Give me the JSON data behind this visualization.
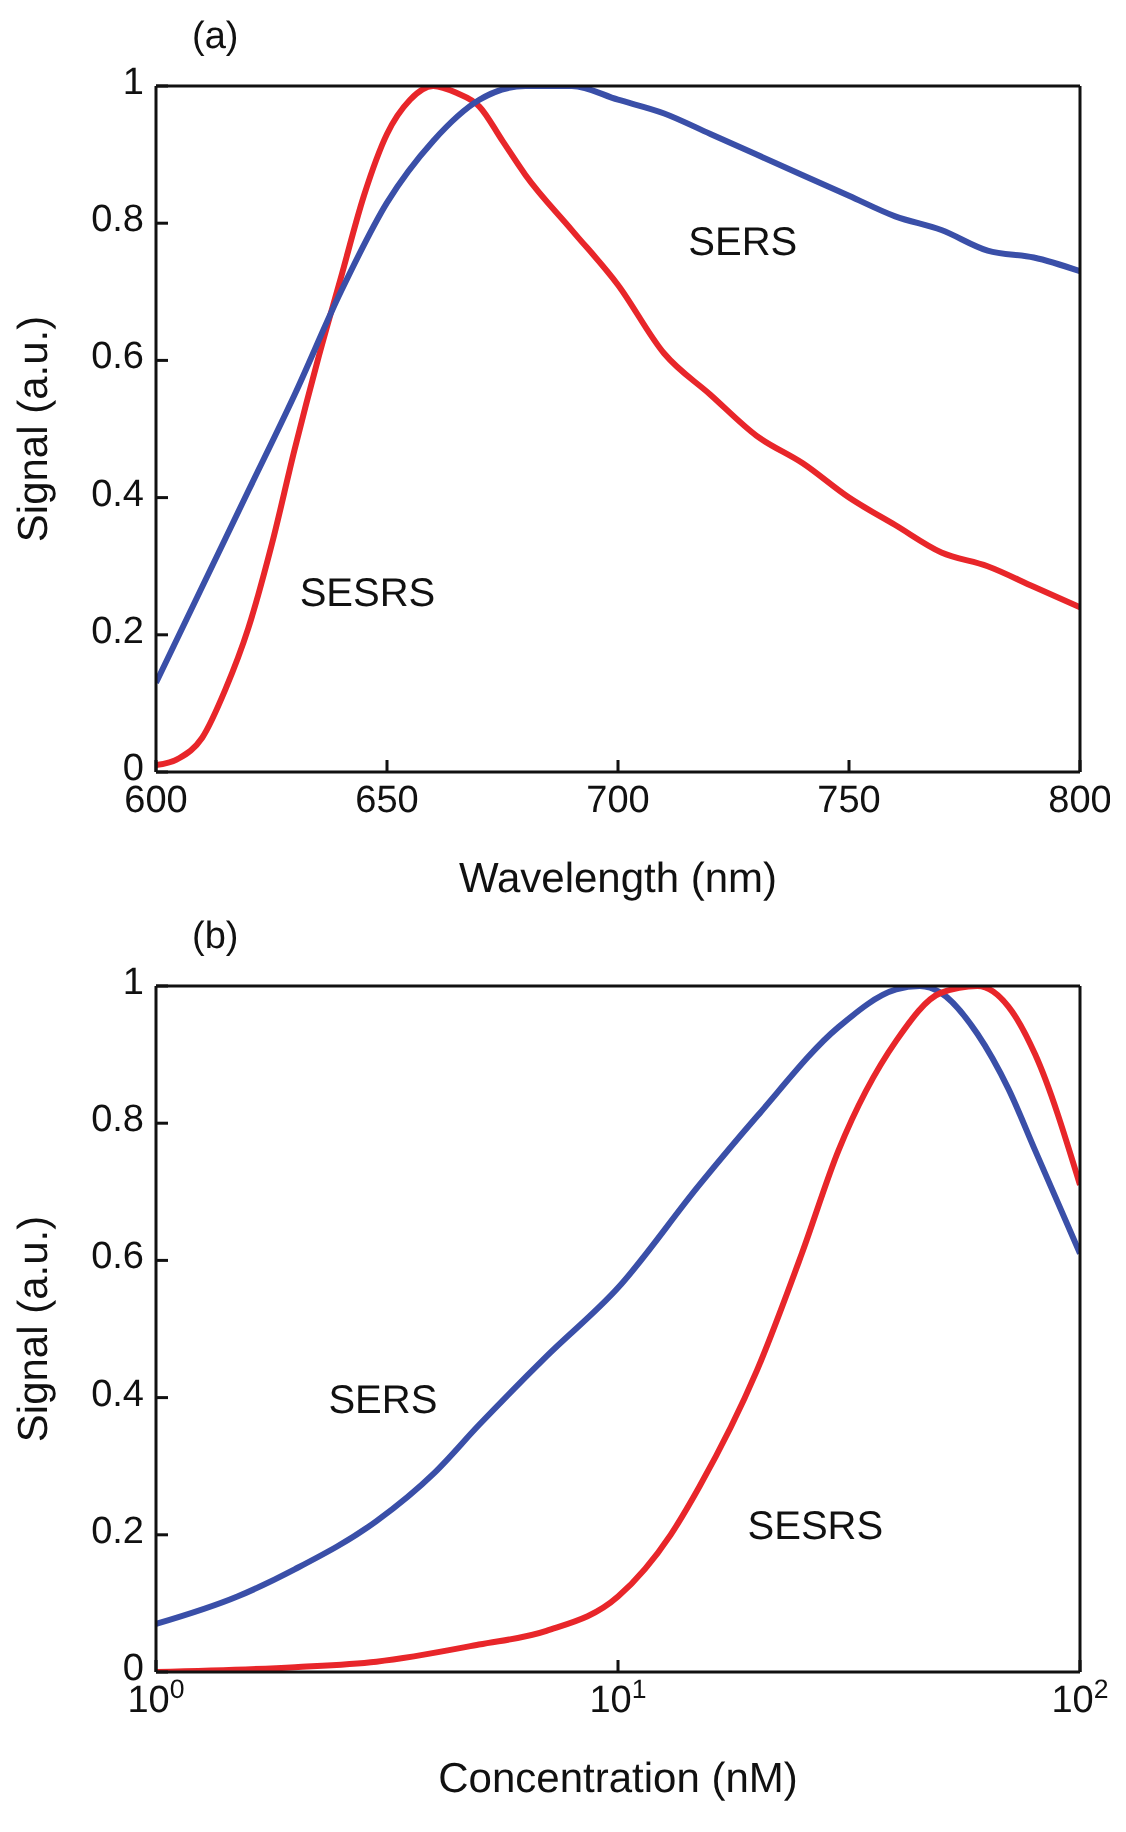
{
  "chart_data": [
    {
      "type": "line",
      "title": "(a)",
      "xlabel": "Wavelength (nm)",
      "ylabel": "Signal (a.u.)",
      "xlim": [
        600,
        800
      ],
      "xticks": [
        600,
        650,
        700,
        750,
        800
      ],
      "ylim": [
        0,
        1
      ],
      "yticks": [
        0,
        0.2,
        0.4,
        0.6,
        0.8,
        1
      ],
      "grid": false,
      "legend": false,
      "marker": "none",
      "line_style": "solid",
      "series": [
        {
          "name": "SESRS",
          "color": "#e8262a",
          "x": [
            600,
            605,
            610,
            615,
            620,
            625,
            630,
            635,
            640,
            645,
            650,
            655,
            660,
            665,
            670,
            675,
            680,
            690,
            700,
            710,
            720,
            730,
            740,
            750,
            760,
            770,
            780,
            790,
            800
          ],
          "values": [
            0.01,
            0.02,
            0.05,
            0.12,
            0.21,
            0.33,
            0.47,
            0.6,
            0.72,
            0.84,
            0.93,
            0.98,
            1.0,
            0.99,
            0.97,
            0.92,
            0.87,
            0.79,
            0.71,
            0.61,
            0.55,
            0.49,
            0.45,
            0.4,
            0.36,
            0.32,
            0.3,
            0.27,
            0.24
          ]
        },
        {
          "name": "SERS",
          "color": "#3a4fa8",
          "x": [
            600,
            610,
            620,
            630,
            640,
            650,
            660,
            670,
            680,
            690,
            700,
            710,
            720,
            730,
            740,
            750,
            760,
            770,
            780,
            790,
            800
          ],
          "values": [
            0.13,
            0.27,
            0.41,
            0.55,
            0.7,
            0.83,
            0.92,
            0.98,
            1.0,
            1.0,
            0.98,
            0.96,
            0.93,
            0.9,
            0.87,
            0.84,
            0.81,
            0.79,
            0.76,
            0.75,
            0.73
          ]
        }
      ]
    },
    {
      "type": "line",
      "title": "(b)",
      "xlabel": "Concentration (nM)",
      "ylabel": "Signal (a.u.)",
      "log": "x",
      "xlim": [
        1,
        100
      ],
      "xticks": [
        {
          "value": 1,
          "label": "10$^{0}$"
        },
        {
          "value": 10,
          "label": "10$^{1}$"
        },
        {
          "value": 100,
          "label": "10$^{2}$"
        }
      ],
      "ylim": [
        0,
        1
      ],
      "yticks": [
        0,
        0.2,
        0.4,
        0.6,
        0.8,
        1
      ],
      "grid": false,
      "legend": false,
      "marker": "none",
      "line_style": "solid",
      "series": [
        {
          "name": "SERS",
          "color": "#3a4fa8",
          "x": [
            1,
            1.5,
            2,
            3,
            4,
            5,
            7,
            10,
            15,
            20,
            30,
            40,
            45,
            50,
            60,
            70,
            80,
            100
          ],
          "values": [
            0.07,
            0.11,
            0.15,
            0.22,
            0.29,
            0.36,
            0.46,
            0.56,
            0.71,
            0.81,
            0.94,
            0.995,
            1.0,
            0.99,
            0.93,
            0.85,
            0.76,
            0.61
          ]
        },
        {
          "name": "SESRS",
          "color": "#e8262a",
          "x": [
            1,
            2,
            3,
            5,
            7,
            10,
            13,
            15,
            20,
            25,
            30,
            40,
            50,
            60,
            70,
            80,
            100
          ],
          "values": [
            0.0,
            0.007,
            0.015,
            0.04,
            0.06,
            0.11,
            0.2,
            0.27,
            0.44,
            0.61,
            0.76,
            0.92,
            0.99,
            1.0,
            0.97,
            0.9,
            0.71
          ]
        }
      ]
    }
  ]
}
